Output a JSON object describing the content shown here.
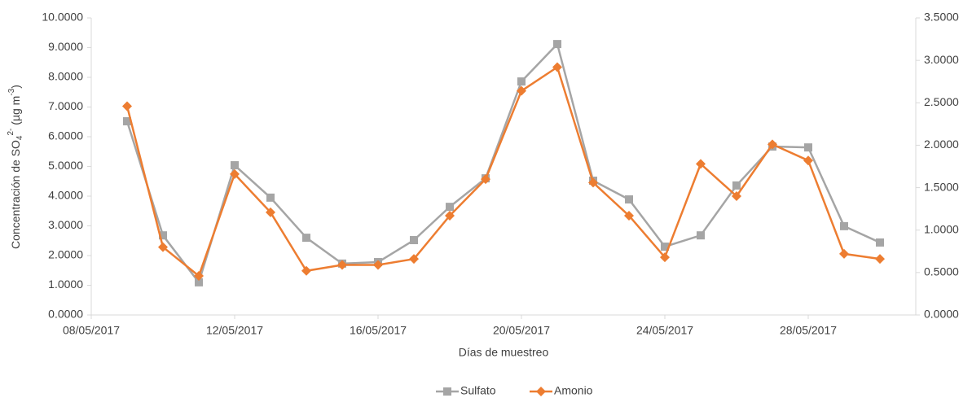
{
  "chart_data": {
    "type": "line",
    "xlabel": "Días de muestreo",
    "ylabel_parts": [
      "Concentración de SO",
      "4",
      "2-",
      " (µg m",
      "-3",
      ")"
    ],
    "x": [
      "09/05/2017",
      "10/05/2017",
      "11/05/2017",
      "12/05/2017",
      "13/05/2017",
      "14/05/2017",
      "15/05/2017",
      "16/05/2017",
      "17/05/2017",
      "18/05/2017",
      "19/05/2017",
      "20/05/2017",
      "21/05/2017",
      "22/05/2017",
      "23/05/2017",
      "24/05/2017",
      "25/05/2017",
      "26/05/2017",
      "27/05/2017",
      "28/05/2017",
      "29/05/2017",
      "30/05/2017"
    ],
    "xlim": [
      "08/05/2017",
      "31/05/2017"
    ],
    "xticks": [
      "08/05/2017",
      "12/05/2017",
      "16/05/2017",
      "20/05/2017",
      "24/05/2017",
      "28/05/2017"
    ],
    "ylim": [
      0,
      10
    ],
    "yticks": [
      {
        "value": 0,
        "label": "0.0000"
      },
      {
        "value": 1,
        "label": "1.0000"
      },
      {
        "value": 2,
        "label": "2.0000"
      },
      {
        "value": 3,
        "label": "3.0000"
      },
      {
        "value": 4,
        "label": "4.0000"
      },
      {
        "value": 5,
        "label": "5.0000"
      },
      {
        "value": 6,
        "label": "6.0000"
      },
      {
        "value": 7,
        "label": "7.0000"
      },
      {
        "value": 8,
        "label": "8.0000"
      },
      {
        "value": 9,
        "label": "9.0000"
      },
      {
        "value": 10,
        "label": "10.0000"
      }
    ],
    "y2lim": [
      0,
      3.5
    ],
    "y2ticks": [
      {
        "value": 0,
        "label": "0.0000"
      },
      {
        "value": 0.5,
        "label": "0.5000"
      },
      {
        "value": 1,
        "label": "1.0000"
      },
      {
        "value": 1.5,
        "label": "1.5000"
      },
      {
        "value": 2,
        "label": "2.0000"
      },
      {
        "value": 2.5,
        "label": "2.5000"
      },
      {
        "value": 3,
        "label": "3.0000"
      },
      {
        "value": 3.5,
        "label": "3.5000"
      }
    ],
    "grid": false,
    "legend": "bottom",
    "series": [
      {
        "name": "Sulfato",
        "color": "#a5a5a5",
        "marker": "square",
        "values": [
          6.52,
          2.68,
          1.1,
          5.04,
          3.95,
          2.6,
          1.73,
          1.78,
          2.52,
          3.64,
          4.6,
          7.86,
          9.12,
          4.52,
          3.89,
          2.3,
          2.68,
          4.36,
          5.67,
          5.64,
          2.99,
          2.44
        ]
      },
      {
        "name": "Amonio",
        "color": "#ed7d31",
        "marker": "diamond",
        "axis": "y2",
        "values": [
          2.46,
          0.8,
          0.46,
          1.66,
          1.21,
          0.52,
          0.59,
          0.59,
          0.66,
          1.17,
          1.6,
          2.64,
          2.92,
          1.56,
          1.17,
          0.68,
          1.78,
          1.4,
          2.01,
          1.82,
          0.72,
          0.66
        ]
      }
    ]
  }
}
